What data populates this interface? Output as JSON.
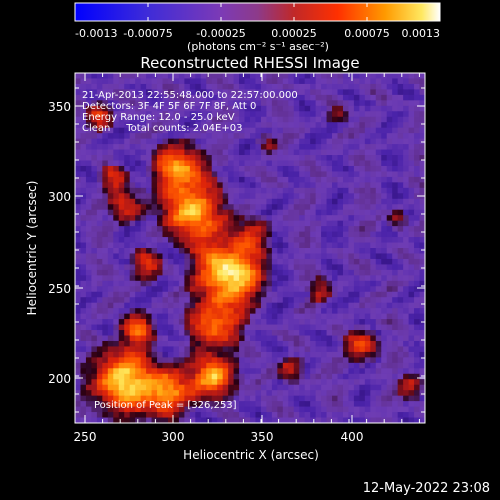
{
  "colorbar": {
    "tick_labels": [
      "-0.0013",
      "-0.00075",
      "-0.00025",
      "0.00025",
      "0.00075",
      "0.0013"
    ],
    "min": -0.0013,
    "max": 0.0013,
    "units_label": "(photons cm⁻² s⁻¹ asec⁻²)"
  },
  "image": {
    "title": "Reconstructed RHESSI Image",
    "xlabel": "Heliocentric X (arcsec)",
    "ylabel": "Heliocentric Y (arcsec)",
    "x_ticks": [
      "250",
      "300",
      "350",
      "400"
    ],
    "y_ticks": [
      "200",
      "250",
      "300",
      "350"
    ],
    "xlim": [
      247,
      438
    ],
    "ylim": [
      174,
      369
    ],
    "info_lines": [
      "21-Apr-2013 22:55:48.000 to 22:57:00.000",
      "Detectors: 3F 4F 5F 6F 7F 8F, Att 0",
      "Energy Range: 12.0 - 25.0 keV",
      "Clean     Total counts: 2.04E+03"
    ],
    "peak_text": "Position of Peak = [326,253]",
    "peak": [
      326,
      253
    ]
  },
  "timestamp": "12-May-2022 23:08"
}
